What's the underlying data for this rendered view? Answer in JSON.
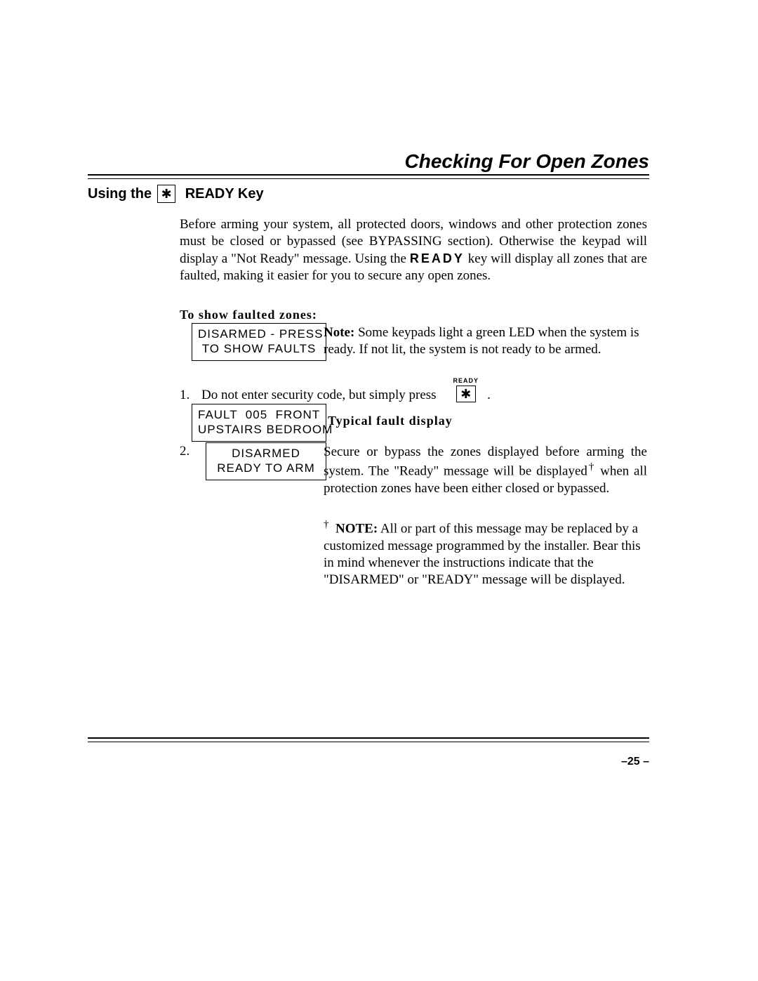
{
  "title": "Checking For Open Zones",
  "subhead_prefix": "Using the",
  "subhead_key_glyph": "✱",
  "subhead_suffix": "READY Key",
  "intro": "Before arming your system, all protected doors, windows and other protection zones must be closed or bypassed (see BYPASSING section).  Otherwise the keypad will display a \"Not Ready\" message. Using the ",
  "intro_ready_word": "READY",
  "intro_tail": " key will display all zones that are faulted, making it easier for you to secure any open zones.",
  "show_faulted_label": "To show faulted zones:",
  "lcd1_line1": "DISARMED - PRESS",
  "lcd1_line2": "TO SHOW FAULTS",
  "note_led_bold": "Note:",
  "note_led_text": " Some keypads light a green LED when the system is ready. If not lit, the system is not ready to be armed.",
  "step1_num": "1.",
  "step1_text": "Do not enter security code, but simply press",
  "ready_key_label": "READY",
  "ready_key_glyph": "✱",
  "lcd2_line1": "FAULT  005  FRONT",
  "lcd2_line2": "UPSTAIRS BEDROOM",
  "typical_fault_label": "Typical fault display",
  "step2_num": "2.",
  "lcd3_line1": "DISARMED",
  "lcd3_line2": "READY TO ARM",
  "step2_text_a": "Secure or bypass the zones displayed before arming the system. The \"Ready\" message will be displayed",
  "dagger": "†",
  "step2_text_b": " when all protection zones have been either closed or bypassed.",
  "note2_bold": "NOTE:",
  "note2_text": " All or part of this message may be replaced by a customized message programmed by the installer.  Bear this in mind whenever the instructions indicate that the \"DISARMED\" or \"READY\" message will be displayed.",
  "page_number": "–25 –"
}
